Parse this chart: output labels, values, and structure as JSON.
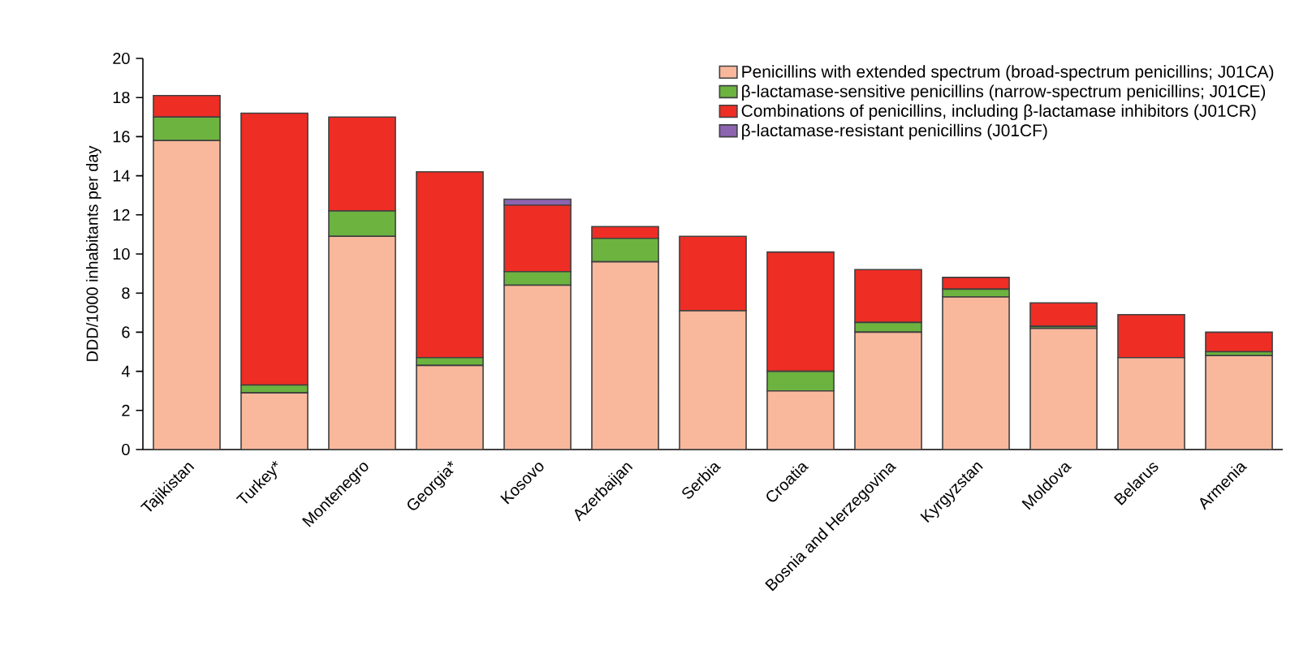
{
  "chart_data": {
    "type": "bar",
    "stacked": true,
    "ylabel": "DDD/1000 inhabitants per day",
    "categories": [
      "Tajikistan",
      "Turkey*",
      "Montenegro",
      "Georgia*",
      "Kosovo",
      "Azerbaijan",
      "Serbia",
      "Croatia",
      "Bosnia and Herzegovina",
      "Kyrgyzstan",
      "Moldova",
      "Belarus",
      "Armenia"
    ],
    "series": [
      {
        "name": "Penicillins with extended spectrum (broad-spectrum penicillins; J01CA)",
        "color": "#f9b89c",
        "values": [
          15.8,
          2.9,
          10.9,
          4.3,
          8.4,
          9.6,
          7.1,
          3.0,
          6.0,
          7.8,
          6.2,
          4.7,
          4.8
        ]
      },
      {
        "name": "β-lactamase-sensitive penicillins (narrow-spectrum penicillins; J01CE)",
        "color": "#6db33f",
        "values": [
          1.2,
          0.4,
          1.3,
          0.4,
          0.7,
          1.2,
          null,
          1.0,
          0.5,
          0.4,
          0.1,
          0,
          0.2
        ]
      },
      {
        "name": "Combinations of penicillins, including β-lactamase inhibitors (J01CR)",
        "color": "#ee2d24",
        "values": [
          1.1,
          13.9,
          4.8,
          9.5,
          3.4,
          0.6,
          3.8,
          6.1,
          2.7,
          0.6,
          1.2,
          2.2,
          1.0
        ]
      },
      {
        "name": "β-lactamase-resistant penicillins (J01CF)",
        "color": "#8c64b0",
        "values": [
          0,
          0,
          0,
          0,
          0.3,
          0,
          0,
          0,
          0,
          0,
          0,
          0,
          0
        ]
      }
    ],
    "ylim": [
      0,
      20
    ],
    "yticks": [
      0,
      2,
      4,
      6,
      8,
      10,
      12,
      14,
      16,
      18,
      20
    ],
    "legend": "top right"
  }
}
